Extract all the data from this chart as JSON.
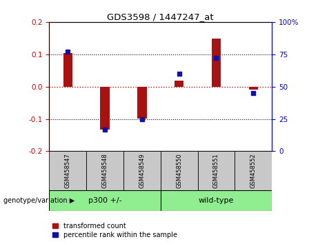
{
  "title": "GDS3598 / 1447247_at",
  "samples": [
    "GSM458547",
    "GSM458548",
    "GSM458549",
    "GSM458550",
    "GSM458551",
    "GSM458552"
  ],
  "red_values": [
    0.103,
    -0.132,
    -0.098,
    0.018,
    0.148,
    -0.01
  ],
  "blue_values_pct": [
    77,
    17,
    25,
    60,
    72,
    45
  ],
  "ylim_left": [
    -0.2,
    0.2
  ],
  "ylim_right": [
    0,
    100
  ],
  "groups": [
    {
      "label": "p300 +/-",
      "start": 0,
      "end": 3,
      "color": "#90EE90"
    },
    {
      "label": "wild-type",
      "start": 3,
      "end": 6,
      "color": "#90EE90"
    }
  ],
  "bar_color": "#AA1111",
  "square_color": "#1111AA",
  "bar_width": 0.25,
  "square_size": 18,
  "left_tick_color": "#CC0000",
  "right_tick_color": "#0000CC",
  "hline_red_color": "#CC0000",
  "dotted_color": "black",
  "label_box_color": "#C8C8C8",
  "genotype_label": "genotype/variation",
  "legend_red": "transformed count",
  "legend_blue": "percentile rank within the sample",
  "left_ticks": [
    -0.2,
    -0.1,
    0.0,
    0.1,
    0.2
  ],
  "right_ticks": [
    0,
    25,
    50,
    75,
    100
  ],
  "right_tick_labels": [
    "0",
    "25",
    "50",
    "75",
    "100%"
  ]
}
